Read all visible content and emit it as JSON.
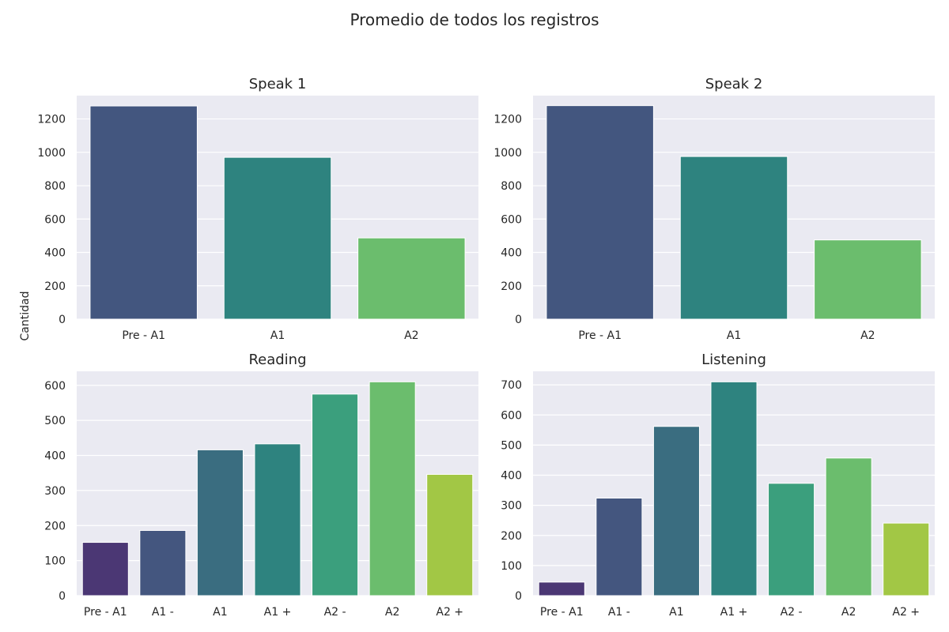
{
  "figure": {
    "title": "Promedio de todos los registros",
    "ylabel": "Cantidad"
  },
  "chart_data": [
    {
      "type": "bar",
      "title": "Speak 1",
      "categories": [
        "Pre - A1",
        "A1",
        "A2"
      ],
      "values": [
        1278,
        970,
        487
      ],
      "colors": [
        "#43567f",
        "#2e837f",
        "#6bbd6d"
      ],
      "ylim": [
        0,
        1340
      ],
      "yticks": [
        0,
        200,
        400,
        600,
        800,
        1000,
        1200
      ],
      "grid": true
    },
    {
      "type": "bar",
      "title": "Speak 2",
      "categories": [
        "Pre - A1",
        "A1",
        "A2"
      ],
      "values": [
        1280,
        975,
        475
      ],
      "colors": [
        "#43567f",
        "#2e837f",
        "#6bbd6d"
      ],
      "ylim": [
        0,
        1340
      ],
      "yticks": [
        0,
        200,
        400,
        600,
        800,
        1000,
        1200
      ],
      "grid": true
    },
    {
      "type": "bar",
      "title": "Reading",
      "categories": [
        "Pre - A1",
        "A1 -",
        "A1",
        "A1 +",
        "A2 -",
        "A2",
        "A2 +"
      ],
      "values": [
        152,
        186,
        416,
        433,
        575,
        610,
        346
      ],
      "colors": [
        "#4b3774",
        "#44567f",
        "#3a6d80",
        "#2e837f",
        "#3b9f7d",
        "#6bbd6d",
        "#a2c745"
      ],
      "ylim": [
        0,
        640
      ],
      "yticks": [
        0,
        100,
        200,
        300,
        400,
        500,
        600
      ],
      "grid": true
    },
    {
      "type": "bar",
      "title": "Listening",
      "categories": [
        "Pre - A1",
        "A1 -",
        "A1",
        "A1 +",
        "A2 -",
        "A2",
        "A2 +"
      ],
      "values": [
        45,
        324,
        562,
        710,
        373,
        457,
        241
      ],
      "colors": [
        "#4b3774",
        "#44567f",
        "#3a6d80",
        "#2e837f",
        "#3b9f7d",
        "#6bbd6d",
        "#a2c745"
      ],
      "ylim": [
        0,
        745
      ],
      "yticks": [
        0,
        100,
        200,
        300,
        400,
        500,
        600,
        700
      ],
      "grid": true
    }
  ]
}
